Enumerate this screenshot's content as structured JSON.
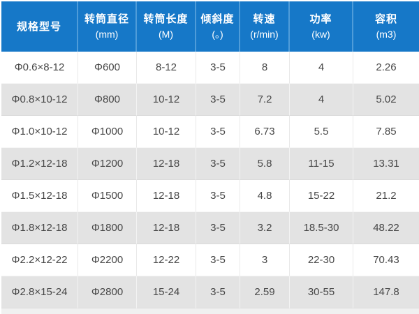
{
  "chart_data": {
    "type": "table",
    "columns": [
      {
        "label": "规格型号",
        "unit": ""
      },
      {
        "label": "转筒直径",
        "unit": "(mm)"
      },
      {
        "label": "转筒长度",
        "unit": "(M)"
      },
      {
        "label": "倾斜度",
        "unit": "(。)"
      },
      {
        "label": "转速",
        "unit": "(r/min)"
      },
      {
        "label": "功率",
        "unit": "(kw)"
      },
      {
        "label": "容积",
        "unit": "(m3)"
      }
    ],
    "rows": [
      [
        "Φ0.6×8-12",
        "Φ600",
        "8-12",
        "3-5",
        "8",
        "4",
        "2.26"
      ],
      [
        "Φ0.8×10-12",
        "Φ800",
        "10-12",
        "3-5",
        "7.2",
        "4",
        "5.02"
      ],
      [
        "Φ1.0×10-12",
        "Φ1000",
        "10-12",
        "3-5",
        "6.73",
        "5.5",
        "7.85"
      ],
      [
        "Φ1.2×12-18",
        "Φ1200",
        "12-18",
        "3-5",
        "5.8",
        "11-15",
        "13.31"
      ],
      [
        "Φ1.5×12-18",
        "Φ1500",
        "12-18",
        "3-5",
        "4.8",
        "15-22",
        "21.2"
      ],
      [
        "Φ1.8×12-18",
        "Φ1800",
        "12-18",
        "3-5",
        "3.2",
        "18.5-30",
        "48.22"
      ],
      [
        "Φ2.2×12-22",
        "Φ2200",
        "12-22",
        "3-5",
        "3",
        "22-30",
        "70.43"
      ],
      [
        "Φ2.8×15-24",
        "Φ2800",
        "15-24",
        "3-5",
        "2.59",
        "30-55",
        "147.8"
      ]
    ],
    "layout": {
      "header_rows": 1,
      "alternating_rows": true,
      "legend_position": "none",
      "grid": "on"
    }
  },
  "colors": {
    "header_bg": "#1678c8",
    "header_divider": "#4f9cd9",
    "header_text": "#ffffff",
    "row_alt_bg": "#e3e3e3",
    "cell_text": "#474747",
    "divider_on_white": "#e9e9e9",
    "divider_on_gray": "#f3f3f3",
    "footer_strip": "#f0f0f0"
  }
}
